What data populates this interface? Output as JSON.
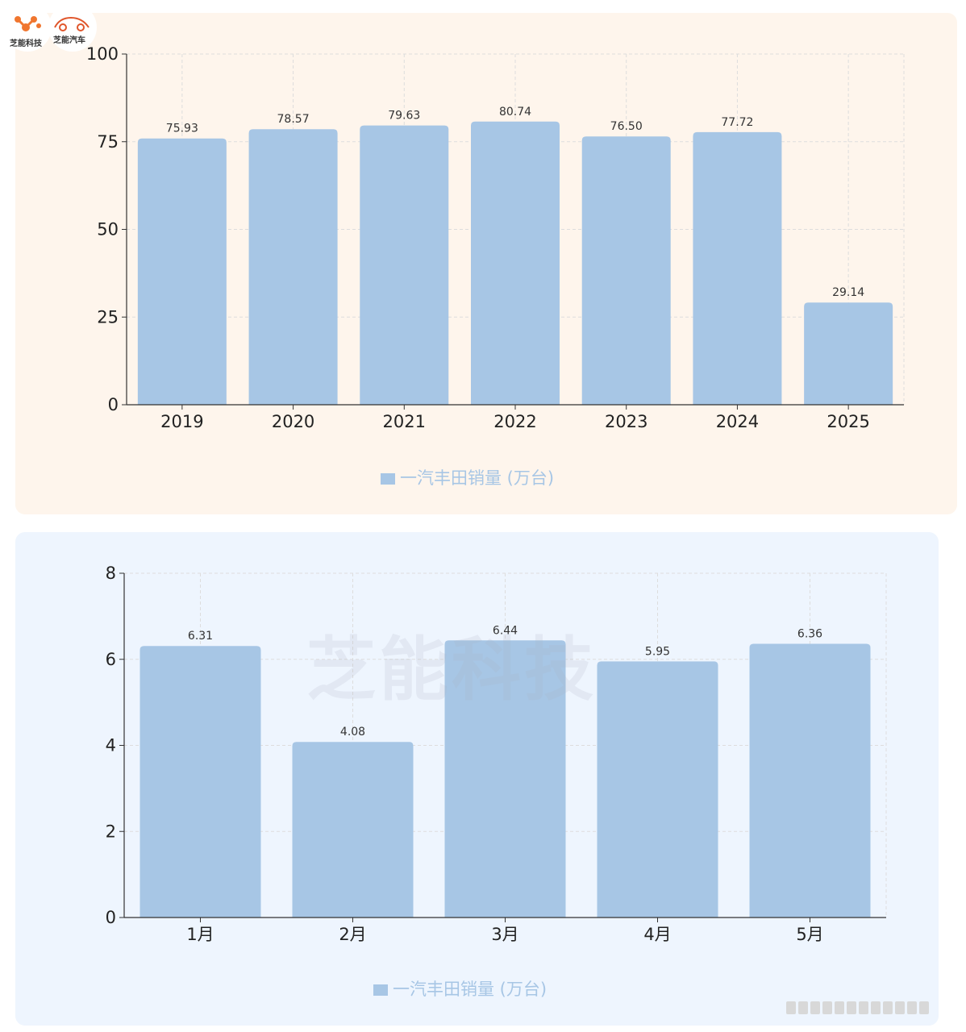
{
  "logos": {
    "left_text": "芝能科技",
    "right_text": "芝能汽车"
  },
  "watermark_text": "芝能科技",
  "colors": {
    "bar": "#a7c6e5",
    "panel1_bg": "#fef5ec",
    "panel2_bg": "#eef5fe",
    "axis": "#333333",
    "grid": "#dddddd",
    "legend_text": "#a7c6e5"
  },
  "chart_data": [
    {
      "type": "bar",
      "title": "",
      "xlabel": "",
      "ylabel": "",
      "categories": [
        "2019",
        "2020",
        "2021",
        "2022",
        "2023",
        "2024",
        "2025"
      ],
      "series": [
        {
          "name": "一汽丰田销量 (万台)",
          "values": [
            75.93,
            78.57,
            79.63,
            80.74,
            76.5,
            77.72,
            29.14
          ]
        }
      ],
      "value_labels": [
        "75.93",
        "78.57",
        "79.63",
        "80.74",
        "76.50",
        "77.72",
        "29.14"
      ],
      "ylim": [
        0,
        100
      ],
      "yticks": [
        "0",
        "25",
        "50",
        "75",
        "100"
      ],
      "grid": true,
      "legend_position": "bottom-center"
    },
    {
      "type": "bar",
      "title": "",
      "xlabel": "",
      "ylabel": "",
      "categories": [
        "1月",
        "2月",
        "3月",
        "4月",
        "5月"
      ],
      "series": [
        {
          "name": "一汽丰田销量 (万台)",
          "values": [
            6.31,
            4.08,
            6.44,
            5.95,
            6.36
          ]
        }
      ],
      "value_labels": [
        "6.31",
        "4.08",
        "6.44",
        "5.95",
        "6.36"
      ],
      "ylim": [
        0,
        8
      ],
      "yticks": [
        "0",
        "2",
        "4",
        "6",
        "8"
      ],
      "grid": true,
      "legend_position": "bottom-center"
    }
  ]
}
